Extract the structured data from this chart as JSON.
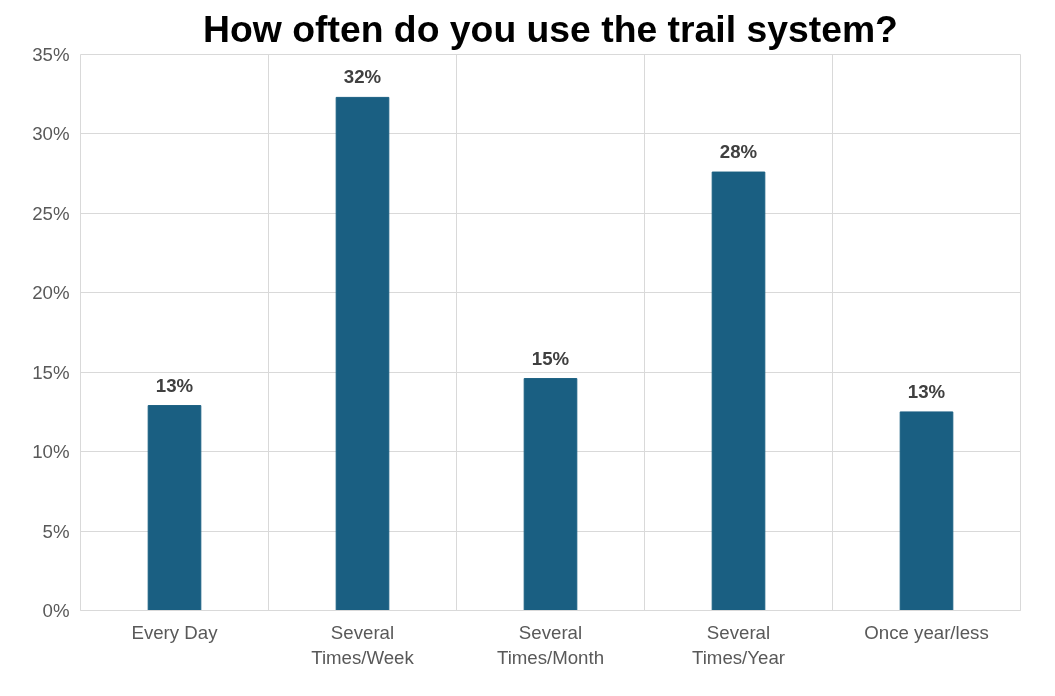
{
  "chart_data": {
    "type": "bar",
    "title": "How often do you use the trail system?",
    "categories": [
      "Every Day",
      "Several\nTimes/Week",
      "Several\nTimes/Month",
      "Several\nTimes/Year",
      "Once year/less"
    ],
    "values": [
      12.9,
      32.3,
      14.6,
      27.6,
      12.5
    ],
    "value_labels": [
      "13%",
      "32%",
      "15%",
      "28%",
      "13%"
    ],
    "color": "#1a5f82",
    "ylim": [
      0,
      35
    ],
    "yticks": [
      {
        "value": 0,
        "label": "0%"
      },
      {
        "value": 5,
        "label": "5%"
      },
      {
        "value": 10,
        "label": "10%"
      },
      {
        "value": 15,
        "label": "15%"
      },
      {
        "value": 20,
        "label": "20%"
      },
      {
        "value": 25,
        "label": "25%"
      },
      {
        "value": 30,
        "label": "30%"
      },
      {
        "value": 35,
        "label": "35%"
      }
    ],
    "grid": true
  }
}
